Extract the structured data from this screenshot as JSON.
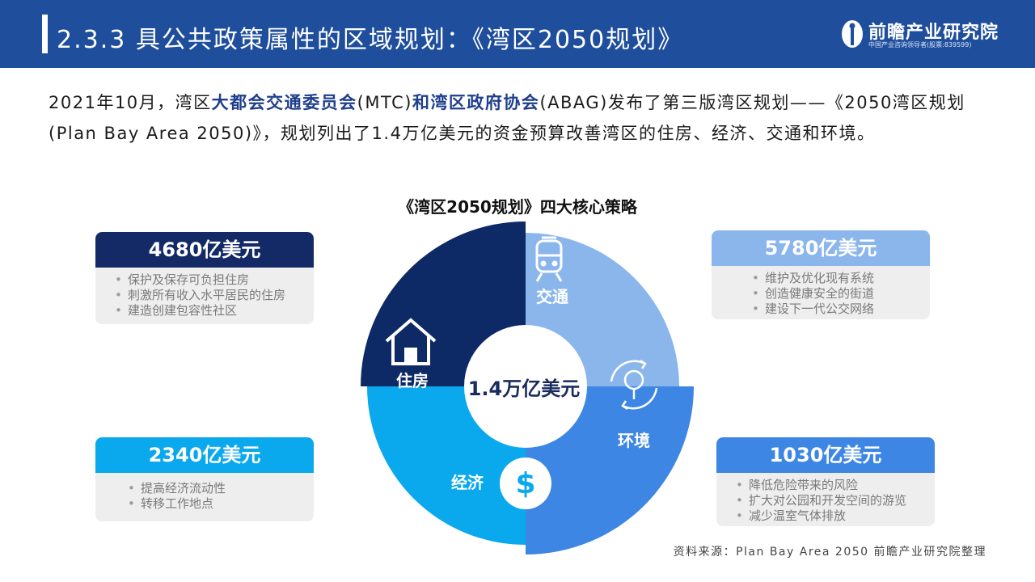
{
  "header": {
    "title": "2.3.3 具公共政策属性的区域规划：《湾区2050规划》",
    "logo_name": "前瞻产业研究院",
    "logo_sub": "中国产业咨询领导者(股票:839599)"
  },
  "intro": {
    "part1": "2021年10月，湾区",
    "org1": "大都会交通委员会",
    "part2": "(MTC)",
    "conj": "和",
    "org2": "湾区政府协会",
    "part3": "(ABAG)发布了第三版湾区规划——《2050湾区规划(Plan Bay Area 2050)》，规划列出了1.4万亿美元的资金预算改善湾区的住房、经济、交通和环境。"
  },
  "chart_data": {
    "type": "pie",
    "title": "《湾区2050规划》四大核心策略",
    "center_label": "1.4万亿美元",
    "categories": [
      "交通",
      "环境",
      "经济",
      "住房"
    ],
    "values": [
      5780,
      1030,
      2340,
      4680
    ],
    "unit": "亿美元",
    "colors": [
      "#8bb6ec",
      "#3d86e4",
      "#0aa8ec",
      "#0e2a66"
    ]
  },
  "cards": {
    "housing": {
      "amount": "4680亿美元",
      "items": [
        "保护及保存可负担住房",
        "刺激所有收入水平居民的住房",
        "建造创建包容性社区"
      ],
      "color": "#132a66"
    },
    "transport": {
      "amount": "5780亿美元",
      "items": [
        "维护及优化现有系统",
        "创造健康安全的街道",
        "建设下一代公交网络"
      ],
      "color": "#8bb6ec"
    },
    "economy": {
      "amount": "2340亿美元",
      "items": [
        "提高经济流动性",
        "转移工作地点"
      ],
      "color": "#0aa8ec"
    },
    "environment": {
      "amount": "1030亿美元",
      "items": [
        "降低危险带来的风险",
        "扩大对公园和开发空间的游览",
        "减少温室气体排放"
      ],
      "color": "#3d86e4"
    }
  },
  "source": "资料来源：Plan Bay Area 2050 前瞻产业研究院整理"
}
